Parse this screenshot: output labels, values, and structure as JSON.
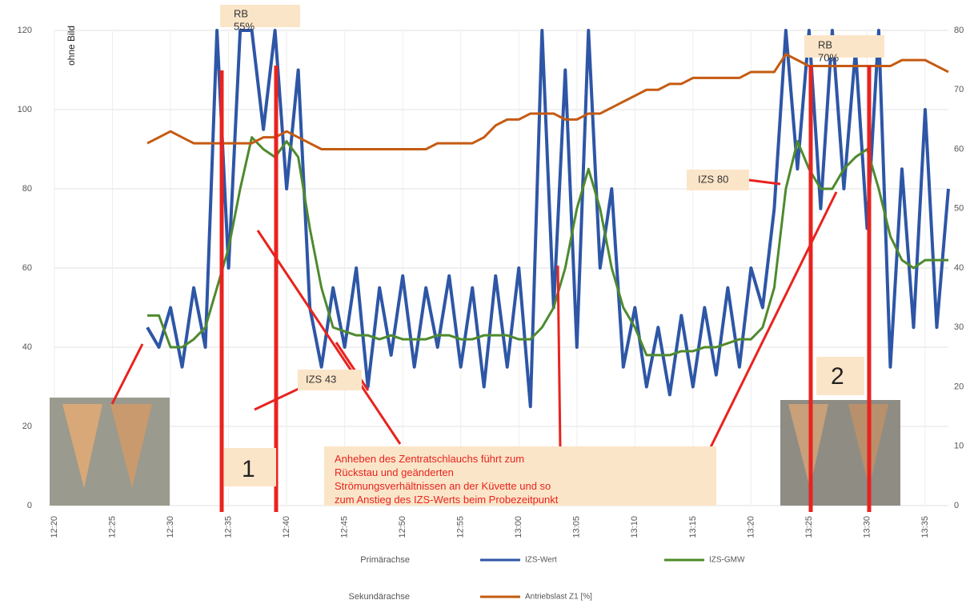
{
  "chart_data": {
    "type": "line",
    "y_axis_note": "ohne Bild",
    "x": [
      "12:28",
      "12:29",
      "12:30",
      "12:31",
      "12:32",
      "12:33",
      "12:34",
      "12:35",
      "12:36",
      "12:37",
      "12:38",
      "12:39",
      "12:40",
      "12:41",
      "12:42",
      "12:43",
      "12:44",
      "12:45",
      "12:46",
      "12:47",
      "12:48",
      "12:49",
      "12:50",
      "12:51",
      "12:52",
      "12:53",
      "12:54",
      "12:55",
      "12:56",
      "12:57",
      "12:58",
      "12:59",
      "13:00",
      "13:01",
      "13:02",
      "13:03",
      "13:04",
      "13:05",
      "13:06",
      "13:07",
      "13:08",
      "13:09",
      "13:10",
      "13:11",
      "13:12",
      "13:13",
      "13:14",
      "13:15",
      "13:16",
      "13:17",
      "13:18",
      "13:19",
      "13:20",
      "13:21",
      "13:22",
      "13:23",
      "13:24",
      "13:25",
      "13:26",
      "13:27",
      "13:28",
      "13:29",
      "13:30",
      "13:31",
      "13:32",
      "13:33",
      "13:34",
      "13:35",
      "13:36",
      "13:37"
    ],
    "series": [
      {
        "name": "IZS-Wert",
        "color": "#2e56a6",
        "axis": "y",
        "values": [
          45,
          40,
          50,
          35,
          55,
          40,
          120,
          60,
          120,
          120,
          95,
          120,
          80,
          110,
          50,
          35,
          55,
          40,
          60,
          30,
          55,
          38,
          58,
          35,
          55,
          40,
          58,
          35,
          55,
          30,
          58,
          35,
          60,
          25,
          120,
          50,
          110,
          40,
          120,
          60,
          80,
          35,
          50,
          30,
          45,
          28,
          48,
          30,
          50,
          33,
          55,
          35,
          60,
          50,
          75,
          120,
          85,
          120,
          75,
          120,
          80,
          115,
          70,
          120,
          35,
          85,
          45,
          100,
          45,
          80
        ]
      },
      {
        "name": "IZS-GMW",
        "color": "#4e8a2e",
        "axis": "y",
        "values": [
          48,
          48,
          40,
          40,
          42,
          45,
          55,
          65,
          80,
          93,
          90,
          88,
          92,
          88,
          70,
          55,
          45,
          44,
          43,
          43,
          42,
          43,
          42,
          42,
          42,
          43,
          43,
          42,
          42,
          43,
          43,
          43,
          42,
          42,
          45,
          50,
          60,
          75,
          85,
          75,
          60,
          50,
          45,
          38,
          38,
          38,
          39,
          39,
          40,
          40,
          41,
          42,
          42,
          45,
          55,
          80,
          92,
          85,
          80,
          80,
          85,
          88,
          90,
          80,
          68,
          62,
          60,
          62,
          62,
          62
        ]
      },
      {
        "name": "Antriebslast Z1 [%]",
        "color": "#c55a11",
        "axis": "y2",
        "values": [
          61,
          62,
          63,
          62,
          61,
          61,
          61,
          61,
          61,
          61,
          62,
          62,
          63,
          62,
          61,
          60,
          60,
          60,
          60,
          60,
          60,
          60,
          60,
          60,
          60,
          61,
          61,
          61,
          61,
          62,
          64,
          65,
          65,
          66,
          66,
          66,
          65,
          65,
          66,
          66,
          67,
          68,
          69,
          70,
          70,
          71,
          71,
          72,
          72,
          72,
          72,
          72,
          73,
          73,
          73,
          76,
          75,
          74,
          74,
          74,
          74,
          74,
          74,
          74,
          74,
          75,
          75,
          75,
          74,
          73
        ]
      }
    ],
    "legend_groups": [
      "Primärachse",
      "Sekundärachse"
    ],
    "xlim": [
      "12:20",
      "13:37"
    ],
    "xticks": [
      "12:20",
      "12:25",
      "12:30",
      "12:35",
      "12:40",
      "12:45",
      "12:50",
      "12:55",
      "13:00",
      "13:05",
      "13:10",
      "13:15",
      "13:20",
      "13:25",
      "13:30",
      "13:35"
    ],
    "ylim": [
      0,
      120
    ],
    "yticks": [
      0,
      20,
      40,
      60,
      80,
      100,
      120
    ],
    "y2lim": [
      0,
      80
    ],
    "y2ticks": [
      0,
      10,
      20,
      30,
      40,
      50,
      60,
      70,
      80
    ],
    "grid": true,
    "annotations": {
      "rb1": [
        "RB",
        "55%"
      ],
      "rb2": [
        "RB",
        "70%"
      ],
      "izs43": "IZS 43",
      "izs80": "IZS 80",
      "marker1": "1",
      "marker2": "2",
      "note": [
        "Anheben des Zentratschlauchs führt zum",
        "Rückstau und geänderten",
        "Strömungsverhältnissen an der Küvette und so",
        "zum Anstieg des IZS-Werts beim Probezeitpunkt"
      ]
    }
  }
}
